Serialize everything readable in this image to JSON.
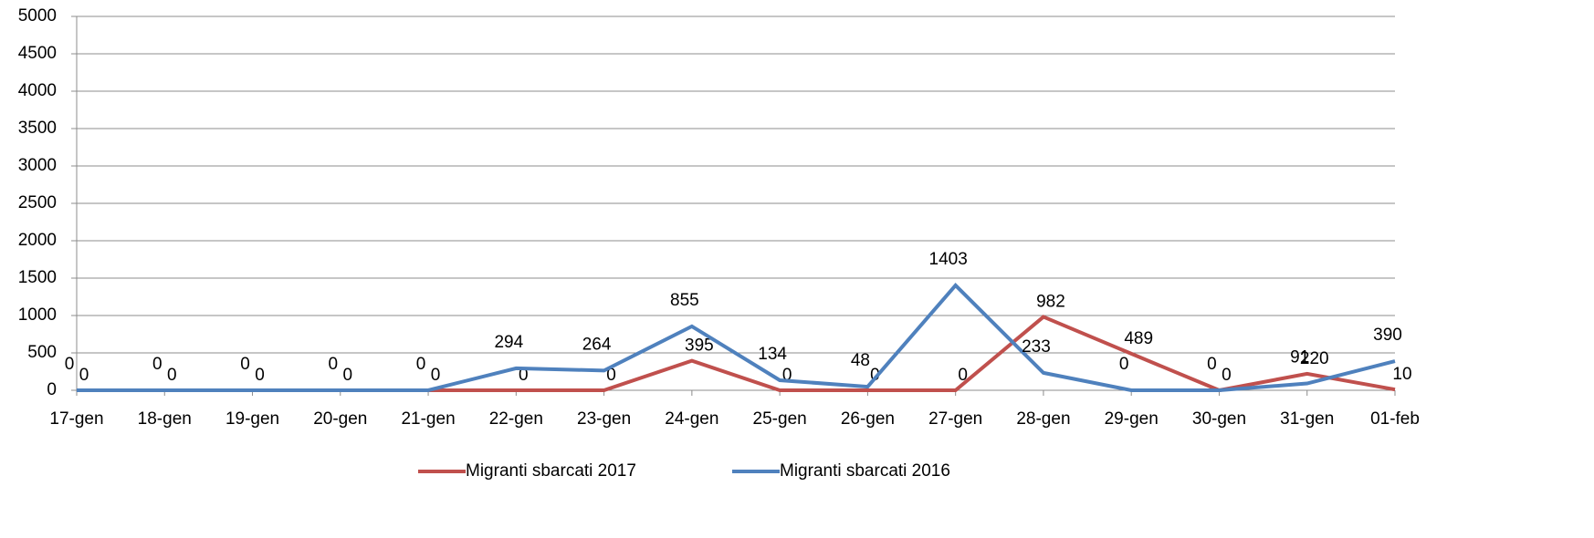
{
  "chart_data": {
    "type": "line",
    "categories": [
      "17-gen",
      "18-gen",
      "19-gen",
      "20-gen",
      "21-gen",
      "22-gen",
      "23-gen",
      "24-gen",
      "25-gen",
      "26-gen",
      "27-gen",
      "28-gen",
      "29-gen",
      "30-gen",
      "31-gen",
      "01-feb"
    ],
    "series": [
      {
        "name": "Migranti sbarcati 2017",
        "color": "#c0504d",
        "values": [
          0,
          0,
          0,
          0,
          0,
          0,
          0,
          395,
          0,
          0,
          0,
          982,
          489,
          0,
          220,
          10
        ]
      },
      {
        "name": "Migranti sbarcati 2016",
        "color": "#4f81bd",
        "values": [
          0,
          0,
          0,
          0,
          0,
          294,
          264,
          855,
          134,
          48,
          1403,
          233,
          0,
          0,
          91,
          390
        ]
      }
    ],
    "ylim": [
      0,
      5000
    ],
    "yticks": [
      0,
      500,
      1000,
      1500,
      2000,
      2500,
      3000,
      3500,
      4000,
      4500,
      5000
    ],
    "grid": true,
    "legend": "bottom"
  }
}
